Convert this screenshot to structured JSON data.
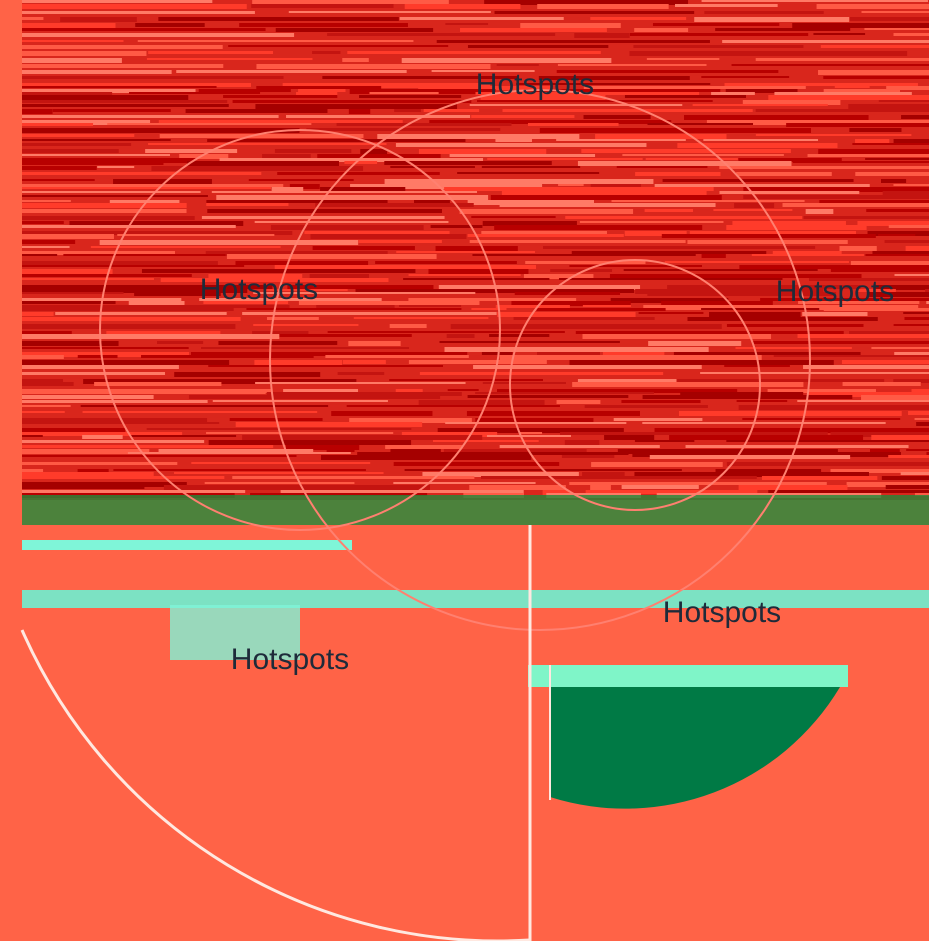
{
  "hotspots": [
    {
      "label": "Hotspots"
    },
    {
      "label": "Hotspots"
    },
    {
      "label": "Hotspots"
    },
    {
      "label": "Hotspots"
    },
    {
      "label": "Hotspots"
    }
  ]
}
